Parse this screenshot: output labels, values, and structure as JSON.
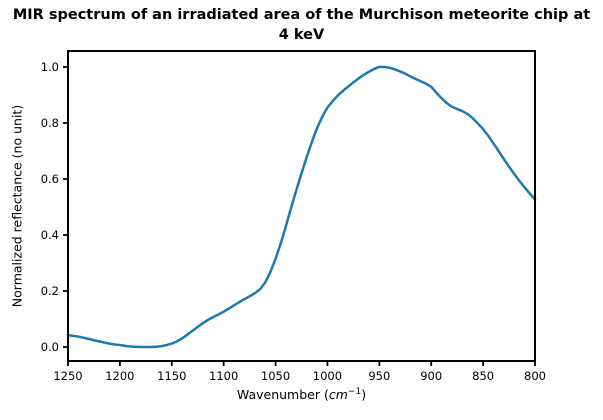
{
  "chart_data": {
    "type": "line",
    "title": "MIR spectrum of an irradiated area of the Murchison meteorite chip at 4 keV",
    "title_lines": [
      "MIR spectrum of an irradiated area of the Murchison meteorite chip at",
      "4 keV"
    ],
    "xlabel": {
      "prefix": "Wavenumber (",
      "unit": "cm",
      "exponent": "−1",
      "suffix": ")"
    },
    "ylabel": "Normalized reflectance (no unit)",
    "x_ticks": [
      "1250",
      "1200",
      "1150",
      "1100",
      "1050",
      "1000",
      "950",
      "900",
      "850",
      "800"
    ],
    "y_ticks": [
      "0.0",
      "0.2",
      "0.4",
      "0.6",
      "0.8",
      "1.0"
    ],
    "x_axis_reversed": true,
    "xlim": [
      1250,
      800
    ],
    "ylim": [
      -0.05,
      1.057
    ],
    "grid": false,
    "legend": "none",
    "line_color": "#1f77b4",
    "line_width": 2.5,
    "axis_color": "#000000",
    "series": [
      {
        "points": [
          [
            1250,
            0.042
          ],
          [
            1245,
            0.04
          ],
          [
            1240,
            0.037
          ],
          [
            1235,
            0.033
          ],
          [
            1230,
            0.029
          ],
          [
            1225,
            0.024
          ],
          [
            1220,
            0.02
          ],
          [
            1215,
            0.016
          ],
          [
            1210,
            0.012
          ],
          [
            1205,
            0.009
          ],
          [
            1200,
            0.007
          ],
          [
            1195,
            0.004
          ],
          [
            1190,
            0.002
          ],
          [
            1185,
            0.001
          ],
          [
            1180,
            0.0
          ],
          [
            1175,
            0.0
          ],
          [
            1170,
            0.0
          ],
          [
            1165,
            0.001
          ],
          [
            1160,
            0.003
          ],
          [
            1155,
            0.007
          ],
          [
            1150,
            0.012
          ],
          [
            1145,
            0.02
          ],
          [
            1140,
            0.031
          ],
          [
            1135,
            0.044
          ],
          [
            1130,
            0.058
          ],
          [
            1125,
            0.072
          ],
          [
            1120,
            0.085
          ],
          [
            1115,
            0.097
          ],
          [
            1110,
            0.107
          ],
          [
            1105,
            0.116
          ],
          [
            1100,
            0.126
          ],
          [
            1095,
            0.137
          ],
          [
            1090,
            0.149
          ],
          [
            1085,
            0.16
          ],
          [
            1080,
            0.171
          ],
          [
            1075,
            0.181
          ],
          [
            1070,
            0.192
          ],
          [
            1065,
            0.206
          ],
          [
            1060,
            0.23
          ],
          [
            1055,
            0.268
          ],
          [
            1050,
            0.315
          ],
          [
            1045,
            0.37
          ],
          [
            1040,
            0.432
          ],
          [
            1035,
            0.497
          ],
          [
            1030,
            0.56
          ],
          [
            1025,
            0.62
          ],
          [
            1020,
            0.678
          ],
          [
            1015,
            0.732
          ],
          [
            1010,
            0.782
          ],
          [
            1005,
            0.822
          ],
          [
            1000,
            0.855
          ],
          [
            995,
            0.878
          ],
          [
            990,
            0.898
          ],
          [
            985,
            0.915
          ],
          [
            980,
            0.93
          ],
          [
            975,
            0.945
          ],
          [
            970,
            0.959
          ],
          [
            965,
            0.972
          ],
          [
            960,
            0.983
          ],
          [
            955,
            0.993
          ],
          [
            950,
            1.0
          ],
          [
            945,
            1.0
          ],
          [
            940,
            0.997
          ],
          [
            935,
            0.991
          ],
          [
            930,
            0.984
          ],
          [
            925,
            0.976
          ],
          [
            920,
            0.966
          ],
          [
            915,
            0.957
          ],
          [
            910,
            0.949
          ],
          [
            905,
            0.94
          ],
          [
            900,
            0.929
          ],
          [
            895,
            0.908
          ],
          [
            890,
            0.888
          ],
          [
            885,
            0.871
          ],
          [
            880,
            0.858
          ],
          [
            875,
            0.85
          ],
          [
            870,
            0.842
          ],
          [
            865,
            0.832
          ],
          [
            860,
            0.817
          ],
          [
            855,
            0.798
          ],
          [
            850,
            0.778
          ],
          [
            845,
            0.754
          ],
          [
            840,
            0.727
          ],
          [
            835,
            0.699
          ],
          [
            830,
            0.671
          ],
          [
            825,
            0.644
          ],
          [
            820,
            0.618
          ],
          [
            815,
            0.593
          ],
          [
            810,
            0.57
          ],
          [
            805,
            0.548
          ],
          [
            800,
            0.527
          ]
        ]
      }
    ]
  }
}
